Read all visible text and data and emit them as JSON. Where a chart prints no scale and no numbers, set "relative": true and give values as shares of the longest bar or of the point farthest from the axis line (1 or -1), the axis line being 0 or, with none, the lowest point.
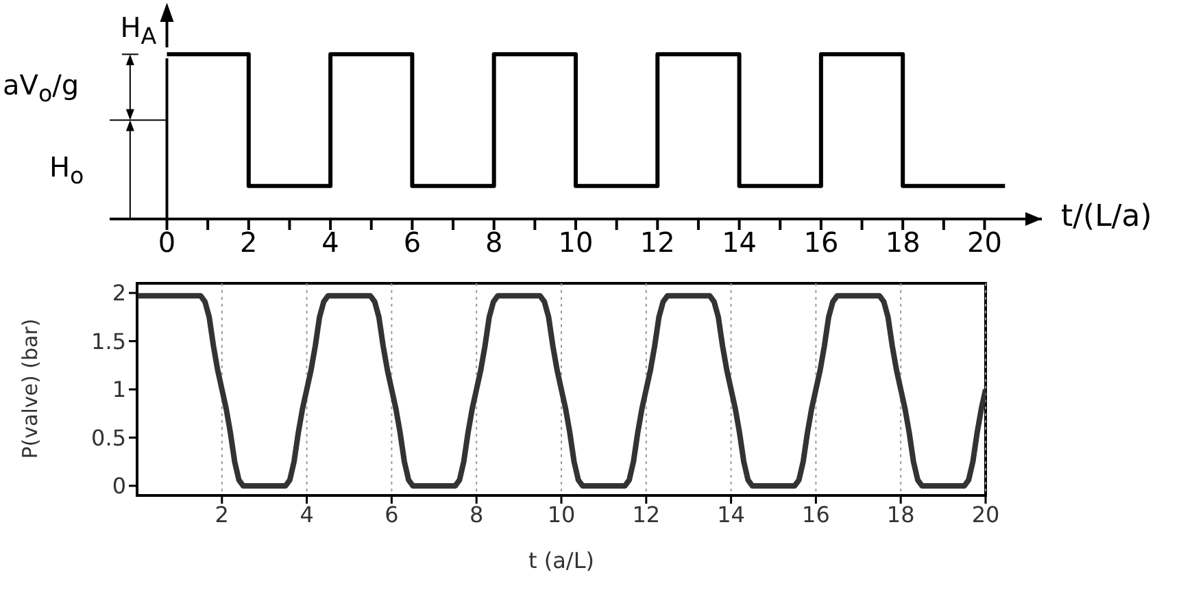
{
  "chart_data": [
    {
      "type": "step",
      "relative": true,
      "xlabel": "t/(L/a)",
      "annotations": [
        "H$_{A}$",
        "aV$_{o}$/g",
        "H$_{o}$"
      ],
      "xlim": [
        -1.4,
        21.4
      ],
      "xticks": [
        0,
        {
          "value": 1,
          "label": null
        },
        2,
        {
          "value": 3,
          "label": null
        },
        4,
        {
          "value": 5,
          "label": null
        },
        6,
        {
          "value": 7,
          "label": null
        },
        8,
        {
          "value": 9,
          "label": null
        },
        10,
        {
          "value": 11,
          "label": null
        },
        12,
        {
          "value": 13,
          "label": null
        },
        14,
        {
          "value": 15,
          "label": null
        },
        16,
        {
          "value": 17,
          "label": null
        },
        18,
        {
          "value": 19,
          "label": null
        },
        20
      ],
      "x": [
        0,
        2,
        4,
        6,
        8,
        10,
        12,
        14,
        16,
        18,
        20.5
      ],
      "series": [
        {
          "color": "#000000",
          "values": [
            1,
            0.2,
            1,
            0.2,
            1,
            0.2,
            1,
            0.2,
            1,
            0.2,
            0.2
          ]
        }
      ]
    },
    {
      "type": "line",
      "xlabel": "t (a/L)",
      "ylabel": "P(valve) (bar)",
      "xlim": [
        0,
        20
      ],
      "xticks": [
        2,
        4,
        6,
        8,
        10,
        12,
        14,
        16,
        18,
        20
      ],
      "ylim": [
        -0.1,
        2.1
      ],
      "yticks": [
        0,
        0.5,
        1,
        1.5,
        2
      ],
      "grid": "x",
      "x": [
        0,
        1.5,
        1.6,
        1.7,
        1.8,
        1.9,
        2,
        2.1,
        2.2,
        2.3,
        2.4,
        2.5,
        3.5,
        3.6,
        3.7,
        3.8,
        3.9,
        4,
        4.1,
        4.2,
        4.3,
        4.4,
        4.5,
        5.5,
        5.6,
        5.7,
        5.8,
        5.9,
        6,
        6.1,
        6.2,
        6.3,
        6.4,
        6.5,
        7.5,
        7.6,
        7.7,
        7.8,
        7.9,
        8,
        8.1,
        8.2,
        8.3,
        8.4,
        8.5,
        9.5,
        9.6,
        9.7,
        9.8,
        9.9,
        10,
        10.1,
        10.2,
        10.3,
        10.4,
        10.5,
        11.5,
        11.6,
        11.7,
        11.8,
        11.9,
        12,
        12.1,
        12.2,
        12.3,
        12.4,
        12.5,
        13.5,
        13.6,
        13.7,
        13.8,
        13.9,
        14,
        14.1,
        14.2,
        14.3,
        14.4,
        14.5,
        15.5,
        15.6,
        15.7,
        15.8,
        15.9,
        16,
        16.1,
        16.2,
        16.3,
        16.4,
        16.5,
        17.5,
        17.6,
        17.7,
        17.8,
        17.9,
        18,
        18.1,
        18.2,
        18.3,
        18.4,
        18.5,
        19.5,
        19.6,
        19.7,
        19.8,
        19.9,
        20
      ],
      "series": [
        {
          "color": "#333333",
          "values": [
            1.97,
            1.97,
            1.91,
            1.75,
            1.45,
            1.2,
            1,
            0.8,
            0.55,
            0.25,
            0.06,
            0,
            0,
            0.06,
            0.25,
            0.55,
            0.8,
            1,
            1.2,
            1.45,
            1.75,
            1.91,
            1.97,
            1.97,
            1.91,
            1.75,
            1.45,
            1.2,
            1,
            0.8,
            0.55,
            0.25,
            0.06,
            0,
            0,
            0.06,
            0.25,
            0.55,
            0.8,
            1,
            1.2,
            1.45,
            1.75,
            1.91,
            1.97,
            1.97,
            1.91,
            1.75,
            1.45,
            1.2,
            1,
            0.8,
            0.55,
            0.25,
            0.06,
            0,
            0,
            0.06,
            0.25,
            0.55,
            0.8,
            1,
            1.2,
            1.45,
            1.75,
            1.91,
            1.97,
            1.97,
            1.91,
            1.75,
            1.45,
            1.2,
            1,
            0.8,
            0.55,
            0.25,
            0.06,
            0,
            0,
            0.06,
            0.25,
            0.55,
            0.8,
            1,
            1.2,
            1.45,
            1.75,
            1.91,
            1.97,
            1.97,
            1.91,
            1.75,
            1.45,
            1.2,
            1,
            0.8,
            0.55,
            0.25,
            0.06,
            0,
            0,
            0.06,
            0.25,
            0.55,
            0.8,
            1
          ]
        }
      ]
    }
  ]
}
